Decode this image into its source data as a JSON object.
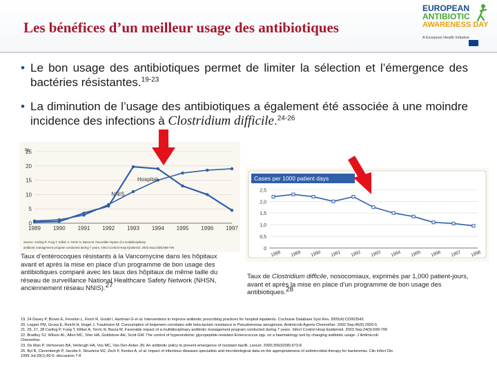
{
  "header": {
    "title": "Les béné­fices d’un meilleur usage des antibiotiques"
  },
  "logo": {
    "line1": "EUROPEAN",
    "line2": "ANTIBIOTIC",
    "line3": "AWARENESS DAY",
    "tagline": "A European Health Initiative"
  },
  "bullets": [
    {
      "text": "Le bon usage des antibiotiques permet de limiter la sélection et l’émergence des bactéries résistantes.",
      "sup": "19-23"
    },
    {
      "text_before": "La diminution de l’usage des antibiotiques a également été associée à une moindre incidence des infections à ",
      "italic": "Clostridium difficile",
      "text_after": ".",
      "sup": "24-26"
    }
  ],
  "chart_data": [
    {
      "type": "line",
      "title": "",
      "ylabel": "%",
      "categories": [
        "1989",
        "1990",
        "1991",
        "1992",
        "1993",
        "1994",
        "1995",
        "1996",
        "1997"
      ],
      "ylim": [
        0,
        25
      ],
      "yticks": [
        "0",
        "5",
        "10",
        "15",
        "20",
        "25"
      ],
      "series": [
        {
          "name": "NNIS",
          "values": [
            0.8,
            1.2,
            2.8,
            6.5,
            11.0,
            15.0,
            17.5,
            18.5,
            19.0
          ]
        },
        {
          "name": "Hospital",
          "values": [
            0.4,
            0.6,
            3.5,
            6.0,
            19.7,
            19.0,
            13.0,
            10.0,
            4.5
          ]
        }
      ],
      "source": "Source: Carling P, Fung T, Killion A, Terrin N, Barza M. Favorable impact of a multidisciplinary antibiotic management program conducted during 7 years. Infect Control Hosp Epidemiol. 2003 Sep;24(9):699-706"
    },
    {
      "type": "line",
      "title": "Cases per 1000 patient days",
      "categories": [
        "1988",
        "1989",
        "1990",
        "1991",
        "1992",
        "1993",
        "1994",
        "1995",
        "1996",
        "1997",
        "1998"
      ],
      "ylim": [
        0,
        2.6
      ],
      "yticks": [
        "0",
        "0,5",
        "1,0",
        "1,5",
        "2,0",
        "2,5"
      ],
      "series": [
        {
          "name": "C. difficile",
          "values": [
            2.2,
            2.3,
            2.2,
            2.0,
            2.2,
            1.75,
            1.5,
            1.35,
            1.1,
            1.05,
            0.95
          ]
        }
      ]
    }
  ],
  "captions": {
    "left": "Taux d’entérocoques résistants à la Vancomycine dans les hôpitaux avant et après la mise en place d’un programme de bon usage des antibiotiques comparé avec les taux des hôpitaux de même taille du réseau de surveillance National Healthcare Safety Network (NHSN, anciennement réseau NNIS).",
    "left_sup": "27",
    "right_before": "Taux de ",
    "right_italic": "Clostridium difficile",
    "right_after": ", nosocomiaux, exprimés par 1,000 patient-jours, avant et après la mise en place d’un programme de bon usage des antibiotiques.",
    "right_sup": "28"
  },
  "references": [
    "19. 24 Davey P, Brown E, Fenelon L, Finch R, Gould I, Hartman G et al. Interventions to improve antibiotic prescribing practices for hospital inpatients. Cochrane Database Syst Rev. 2005(4):CD003543",
    "20. Lepper PM, Grusa E, Reichl H, Hogel J, Trautmann M. Consumption of imipenem correlates with beta-lactam resistance in Pseudomonas aeruginosa. Antimicrob Agents Chemother. 2002 Sep;46(9):2920-5",
    "21. 25, 27, 28 Carling P, Fung T, Killion A, Terrin N, Barza M. Favorable impact of a multidisciplinary antibiotic management program conducted during 7 years. Infect Control Hosp Epidemiol. 2003 Sep;24(9):699-706",
    "22. Bradley SJ, Wilson AL, Allen MC, Sher HA, Goldstone AH, Scott GM. The control of hyperendemic glycopeptide-resistant Enterococcus spp. on a haematology unit by changing antibiotic usage. J Antimicrob",
    "Chemother.",
    "23. De Man P, Verhoeven BA, Verbrugh HA, Vos MC, Van Den Anker JN. An antibiotic policy to prevent emergence of resistant bacilli. Lancet. 2000;355(9208):973-8",
    "26. Byl B, Clevenbergh P, Jacobs F, Struelens MJ, Zech F, Kentos A, et al. Impact of infectious diseases specialists and microbiological data on the appropriateness of antimicrobial therapy for bacteremia. Clin Infect Dis",
    "1999 Jul;29(1):60-6; discussion 7-8"
  ],
  "colors": {
    "title": "#a6192e",
    "nnis_line": "#2f5fa8",
    "hospital_line": "#2f5fa8",
    "right_line": "#2f5fa8",
    "arrow": "#e3121a"
  }
}
